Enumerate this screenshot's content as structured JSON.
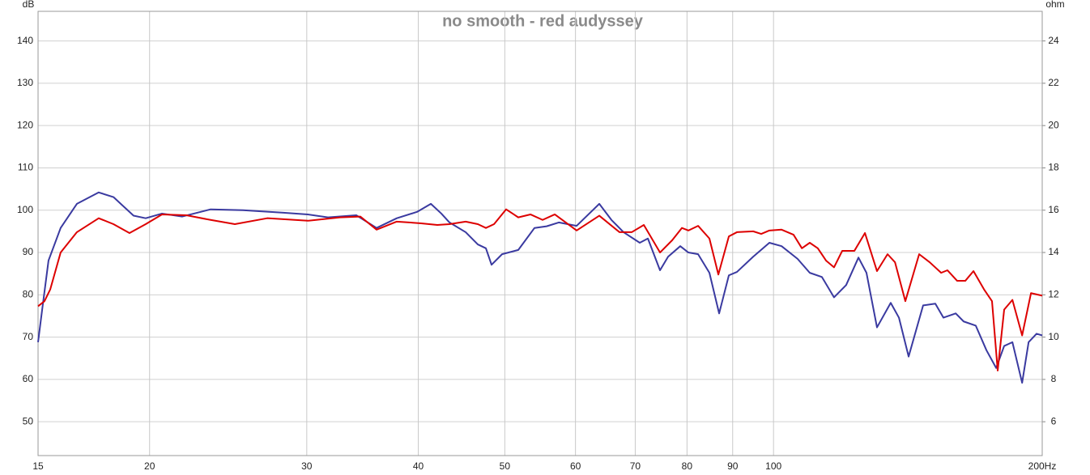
{
  "chart_data": {
    "type": "line",
    "title": "no smooth - red audyssey",
    "y_label": "dB",
    "y2_label": "ohm",
    "xscale": "log",
    "grid": true,
    "xlim": [
      15,
      200
    ],
    "xticks": [
      15,
      20,
      30,
      40,
      50,
      60,
      70,
      80,
      90,
      100,
      {
        "value": 200,
        "label": "200Hz"
      }
    ],
    "ylim": [
      42,
      147
    ],
    "yticks": [
      50,
      60,
      70,
      80,
      90,
      100,
      110,
      120,
      130,
      140
    ],
    "y2lim": [
      4.4,
      25.4
    ],
    "y2ticks": [
      6,
      8,
      10,
      12,
      14,
      16,
      18,
      20,
      22,
      24
    ],
    "series": [
      {
        "color": "#3a3aa0",
        "x": [
          15,
          15.16,
          15.41,
          15.9,
          16.58,
          17.54,
          18.22,
          19.19,
          19.8,
          20.65,
          21.76,
          23.41,
          25.45,
          28.25,
          30.08,
          31.69,
          34.09,
          35.92,
          37.84,
          39.87,
          41.32,
          42.45,
          43.35,
          45.2,
          46.64,
          47.62,
          48.32,
          49.65,
          51.77,
          53.98,
          55.7,
          57.47,
          60.18,
          63.8,
          65.83,
          67.92,
          70.82,
          72.32,
          74.62,
          76.19,
          78.62,
          80.28,
          82.32,
          84.76,
          86.91,
          89.12,
          91,
          94.89,
          98.94,
          102.1,
          106.4,
          109.8,
          113.3,
          116.9,
          120.6,
          124.5,
          127.1,
          130.6,
          135.3,
          138.2,
          141.7,
          147.1,
          151.8,
          155,
          160,
          163.3,
          168.5,
          173.2,
          177.6,
          181.3,
          185.2,
          189.9,
          193.1,
          197.1,
          200
        ],
        "values": [
          68.8,
          76.5,
          88.1,
          95.8,
          101.5,
          104.2,
          103.1,
          98.7,
          98.1,
          99.2,
          98.5,
          100.2,
          100,
          99.4,
          99,
          98.3,
          98.8,
          95.8,
          98.1,
          99.6,
          101.5,
          99.2,
          97.1,
          94.8,
          91.9,
          91,
          87.1,
          89.6,
          90.6,
          95.8,
          96.2,
          97.1,
          96.3,
          101.5,
          97.7,
          94.8,
          92.3,
          93.3,
          85.8,
          89,
          91.5,
          90,
          89.6,
          85.2,
          75.6,
          84.6,
          85.4,
          89,
          92.3,
          91.5,
          88.5,
          85.2,
          84.2,
          79.4,
          82.3,
          88.8,
          85.2,
          72.3,
          78.1,
          74.6,
          65.4,
          77.5,
          77.9,
          74.6,
          75.6,
          73.7,
          72.7,
          66.9,
          62.7,
          67.9,
          68.8,
          59.2,
          68.8,
          70.8,
          70.4
        ]
      },
      {
        "color": "#dd0000",
        "x": [
          15,
          15.25,
          15.48,
          15.9,
          16.58,
          17.54,
          18.22,
          18.99,
          19.8,
          20.65,
          21.99,
          23.41,
          24.92,
          27.09,
          30.08,
          32.7,
          34.45,
          35.92,
          37.84,
          40.29,
          42.01,
          43.35,
          45.2,
          46.64,
          47.62,
          48.63,
          50.17,
          51.77,
          53.42,
          55.12,
          56.88,
          60.18,
          63.8,
          67.22,
          69.36,
          71.57,
          74.62,
          77,
          78.95,
          80.28,
          82.32,
          84.76,
          86.74,
          89.12,
          91,
          94.89,
          96.88,
          98.94,
          102.1,
          105.3,
          107.6,
          109.8,
          112.1,
          114.5,
          116.9,
          119.4,
          123.2,
          126.6,
          130.6,
          134.2,
          136.8,
          140.5,
          145.6,
          149.6,
          154.1,
          156.6,
          160.6,
          164,
          167.5,
          172.1,
          175.7,
          178.3,
          181.3,
          185.2,
          189.9,
          194.3,
          200
        ],
        "values": [
          77.3,
          78.5,
          81.3,
          90,
          94.8,
          98.1,
          96.7,
          94.6,
          96.7,
          99,
          98.8,
          97.7,
          96.7,
          98.1,
          97.5,
          98.3,
          98.5,
          95.4,
          97.3,
          96.9,
          96.5,
          96.7,
          97.3,
          96.7,
          95.8,
          96.7,
          100.2,
          98.3,
          99,
          97.7,
          99,
          95.2,
          98.7,
          94.8,
          94.8,
          96.5,
          90,
          92.9,
          95.8,
          95.2,
          96.3,
          93.3,
          84.8,
          93.8,
          94.8,
          95,
          94.4,
          95.2,
          95.4,
          94.2,
          91,
          92.3,
          91,
          88.1,
          86.5,
          90.4,
          90.4,
          94.6,
          85.6,
          89.6,
          87.7,
          78.5,
          89.6,
          87.7,
          85.2,
          85.8,
          83.3,
          83.3,
          85.6,
          81.3,
          78.5,
          62.1,
          76.5,
          78.8,
          70.4,
          80.4,
          79.8
        ]
      }
    ]
  }
}
